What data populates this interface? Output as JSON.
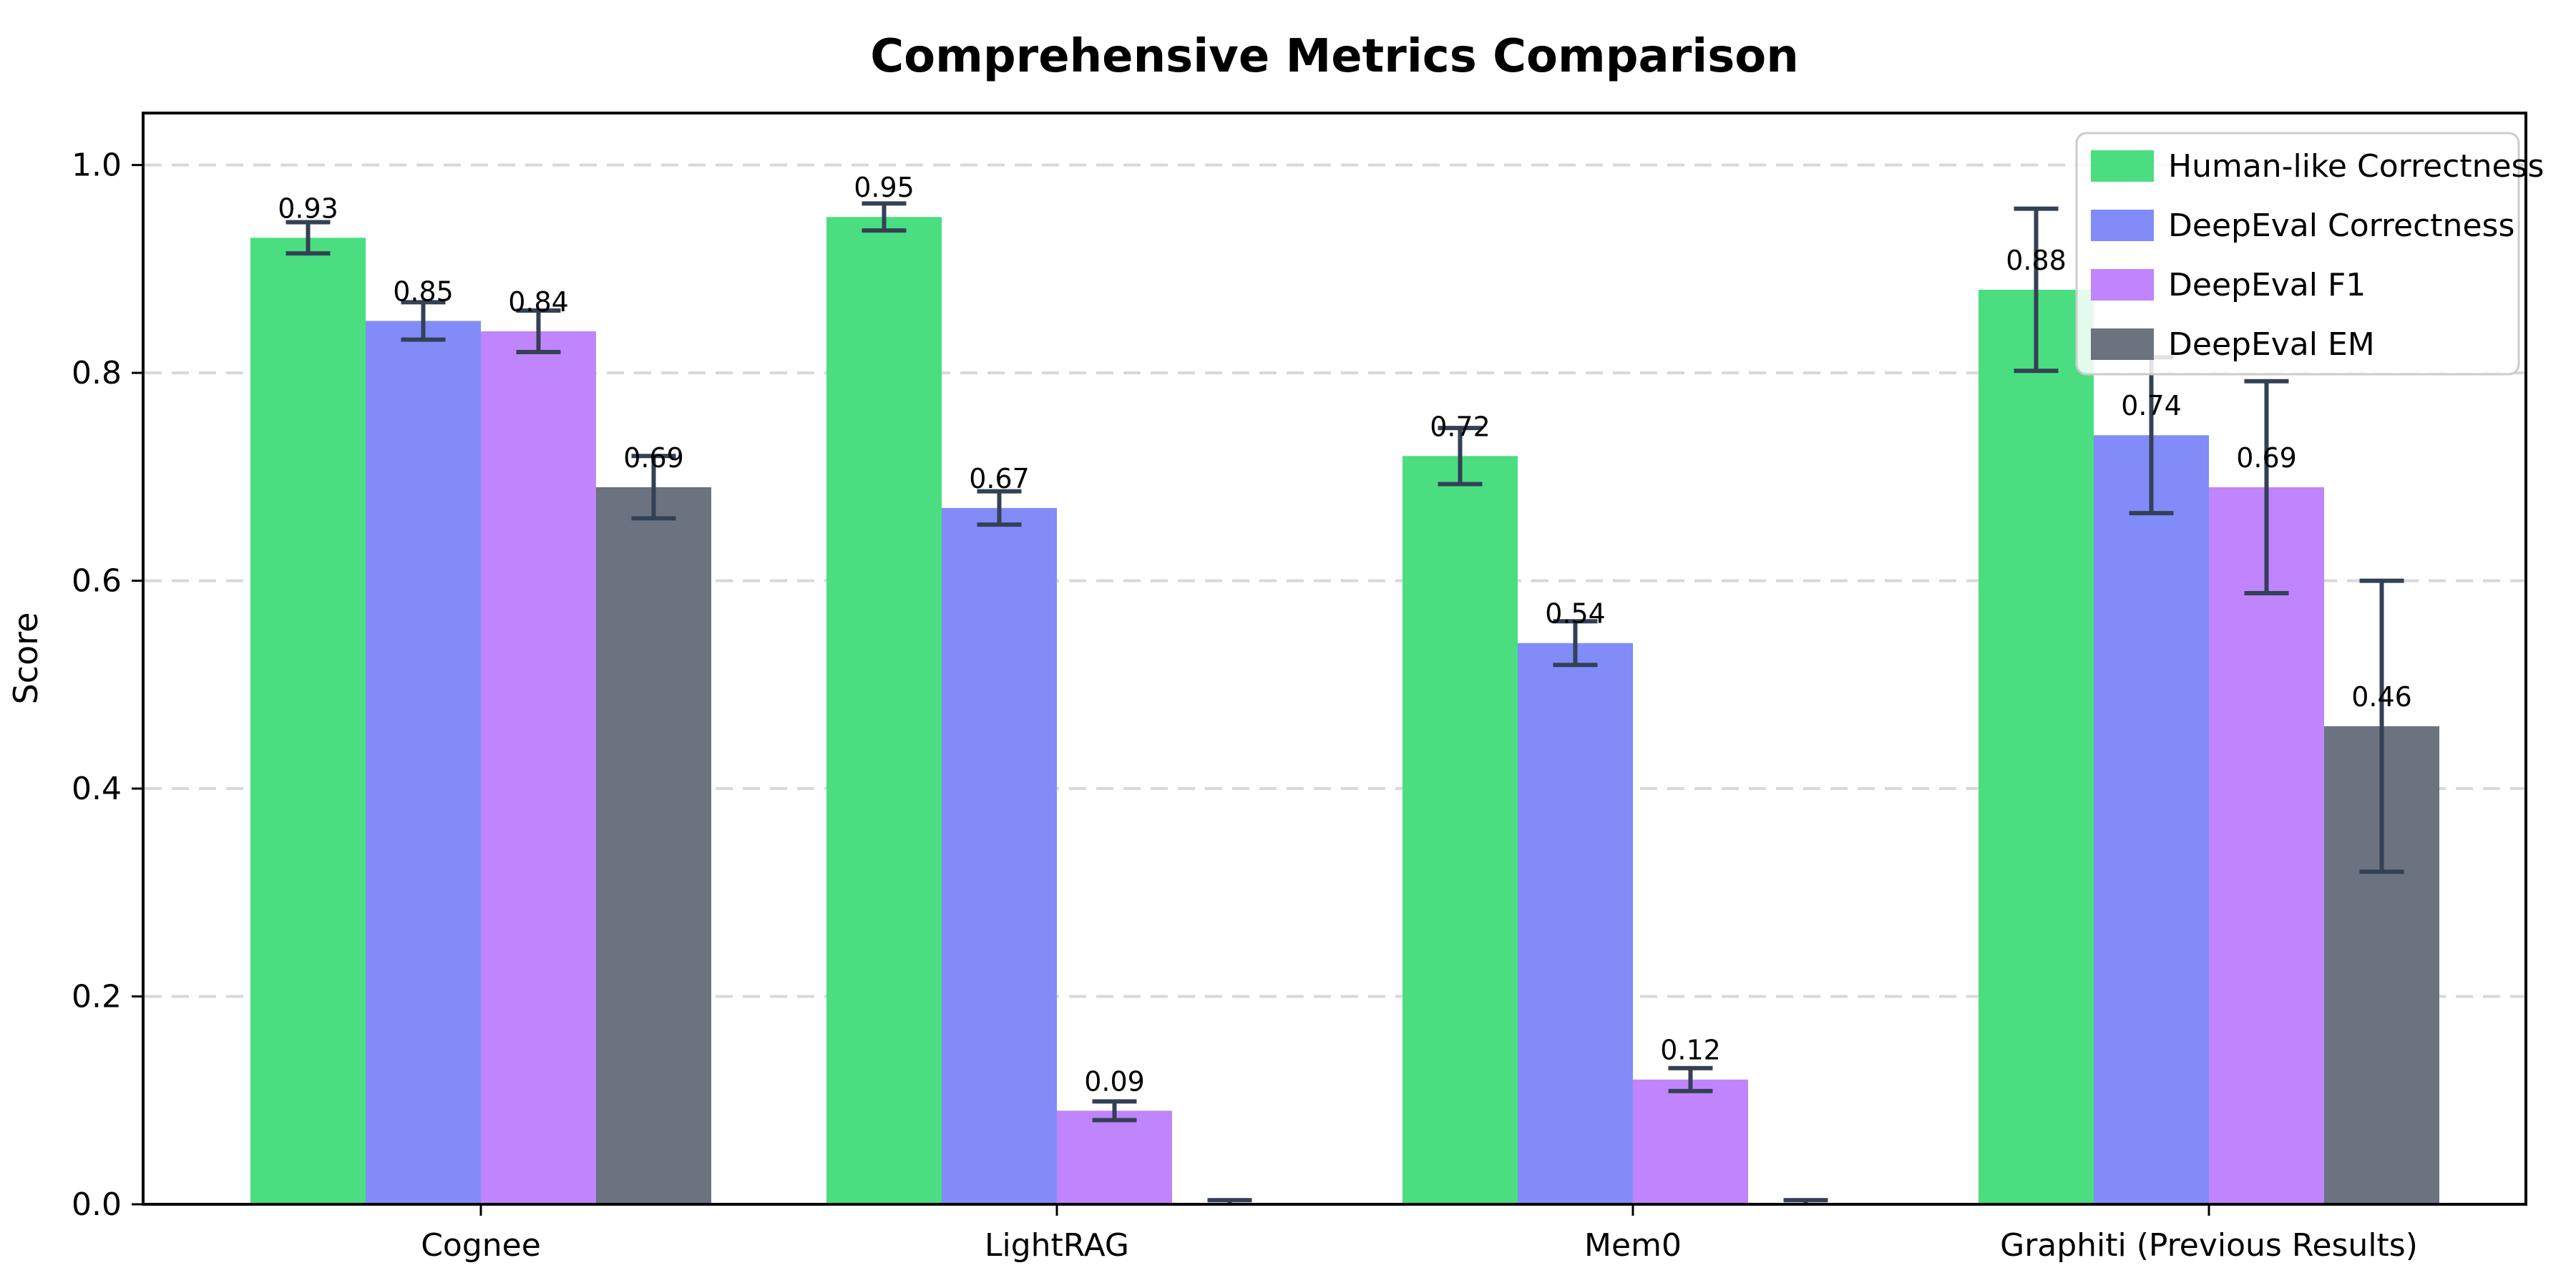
{
  "chart_data": {
    "type": "bar",
    "title": "Comprehensive Metrics Comparison",
    "xlabel": "",
    "ylabel": "Score",
    "categories": [
      "Cognee",
      "LightRAG",
      "Mem0",
      "Graphiti (Previous Results)"
    ],
    "series": [
      {
        "name": "Human-like Correctness",
        "color": "#4ade80",
        "values": [
          0.93,
          0.95,
          0.72,
          0.88
        ],
        "errors": [
          0.015,
          0.013,
          0.027,
          0.078
        ]
      },
      {
        "name": "DeepEval Correctness",
        "color": "#818cf8",
        "values": [
          0.85,
          0.67,
          0.54,
          0.74
        ],
        "errors": [
          0.018,
          0.016,
          0.021,
          0.075
        ]
      },
      {
        "name": "DeepEval F1",
        "color": "#c084fc",
        "values": [
          0.84,
          0.09,
          0.12,
          0.69
        ],
        "errors": [
          0.02,
          0.009,
          0.011,
          0.102
        ]
      },
      {
        "name": "DeepEval EM",
        "color": "#6b7280",
        "values": [
          0.69,
          0.0,
          0.0,
          0.46
        ],
        "errors": [
          0.03,
          0.004,
          0.004,
          0.14
        ]
      }
    ],
    "bar_value_labels": [
      [
        "0.93",
        "0.95",
        "0.72",
        "0.88"
      ],
      [
        "0.85",
        "0.67",
        "0.54",
        "0.74"
      ],
      [
        "0.84",
        "0.09",
        "0.12",
        "0.69"
      ],
      [
        "0.69",
        "",
        "",
        "0.46"
      ]
    ],
    "yticks": [
      0.0,
      0.2,
      0.4,
      0.6,
      0.8,
      1.0
    ],
    "ytick_labels": [
      "0.0",
      "0.2",
      "0.4",
      "0.6",
      "0.8",
      "1.0"
    ],
    "ylim": [
      0,
      1.05
    ],
    "grid": "horizontal-dashed",
    "legend_position": "upper right",
    "colors": {
      "error_bar": "#334155",
      "axis": "#000000",
      "grid": "#d8d8d8",
      "legend_border": "#cccccc",
      "background": "#ffffff"
    }
  }
}
